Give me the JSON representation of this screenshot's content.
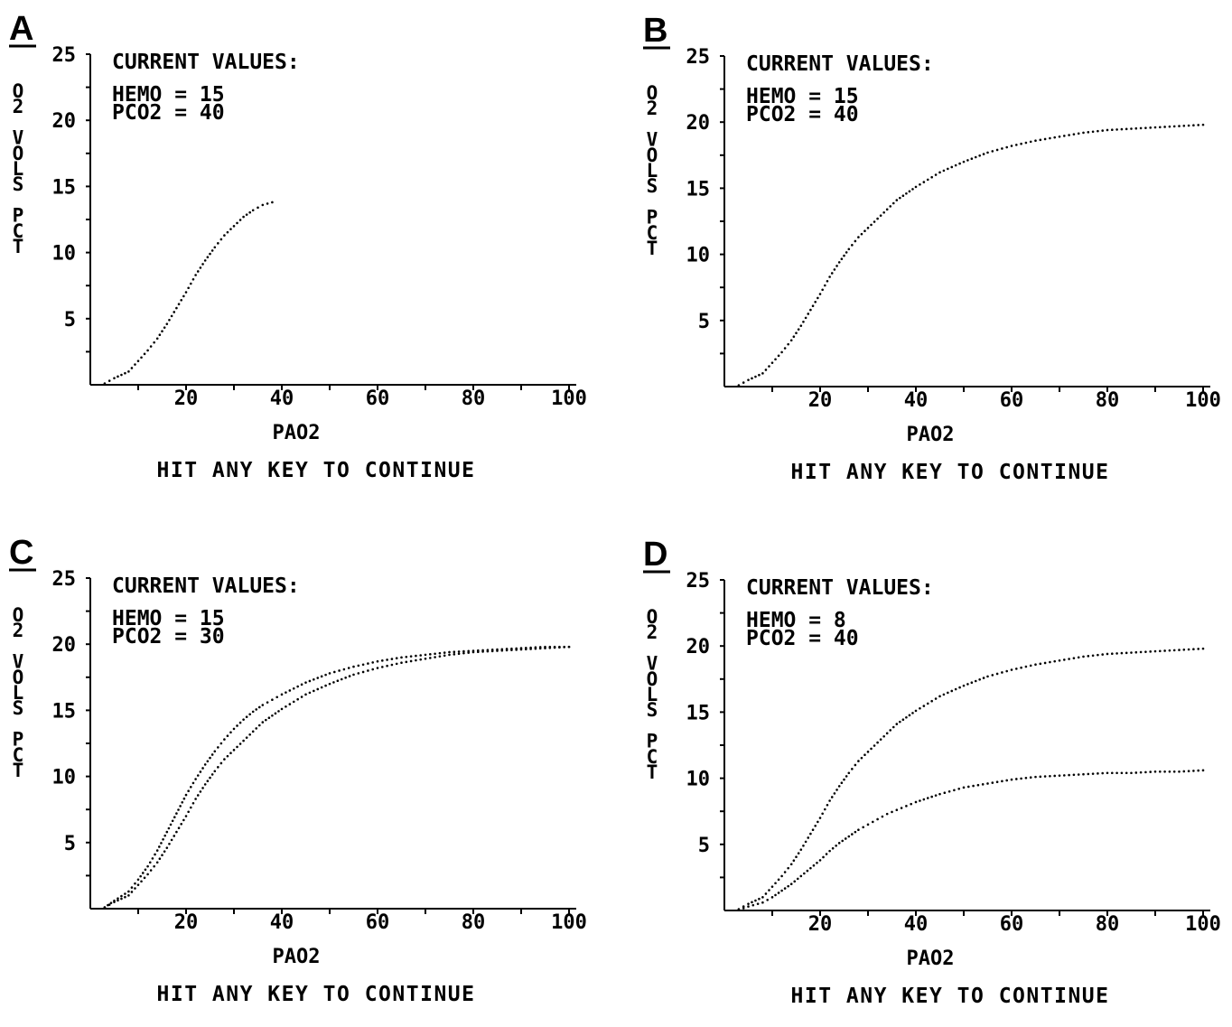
{
  "panels": [
    {
      "letter": "A",
      "heading": "CURRENT VALUES:",
      "hemo_text": "HEMO = 15",
      "pco2_text": "PCO2 = 40",
      "prompt": "HIT ANY KEY TO CONTINUE",
      "chart_data": {
        "type": "scatter",
        "xlabel": "PAO2",
        "ylabel": "O2 VOLS PCT",
        "x_ticks": [
          "20",
          "40",
          "60",
          "80",
          "100"
        ],
        "y_ticks": [
          "5",
          "10",
          "15",
          "20",
          "25"
        ],
        "xlim": [
          0,
          100
        ],
        "ylim": [
          0,
          25
        ],
        "series": [
          {
            "x": [
              3,
              5,
              8,
              10,
              12,
              14,
              16,
              18,
              20,
              22,
              24,
              26,
              28,
              30,
              32,
              34,
              36,
              38
            ],
            "y": [
              0.1,
              0.5,
              1.0,
              1.8,
              2.6,
              3.5,
              4.6,
              5.8,
              7.0,
              8.3,
              9.4,
              10.4,
              11.3,
              12.0,
              12.7,
              13.2,
              13.6,
              13.8
            ]
          }
        ]
      }
    },
    {
      "letter": "B",
      "heading": "CURRENT VALUES:",
      "hemo_text": "HEMO = 15",
      "pco2_text": "PCO2 = 40",
      "prompt": "HIT ANY KEY TO CONTINUE",
      "chart_data": {
        "type": "scatter",
        "xlabel": "PAO2",
        "ylabel": "O2 VOLS PCT",
        "x_ticks": [
          "20",
          "40",
          "60",
          "80",
          "100"
        ],
        "y_ticks": [
          "5",
          "10",
          "15",
          "20",
          "25"
        ],
        "xlim": [
          0,
          100
        ],
        "ylim": [
          0,
          25
        ],
        "series": [
          {
            "x": [
              3,
              5,
              8,
              10,
              12,
              14,
              16,
              18,
              20,
              22,
              24,
              26,
              28,
              30,
              32,
              34,
              36,
              38,
              40,
              45,
              50,
              55,
              60,
              65,
              70,
              75,
              80,
              85,
              90,
              95,
              100
            ],
            "y": [
              0.1,
              0.5,
              1.0,
              1.8,
              2.6,
              3.5,
              4.6,
              5.8,
              7.0,
              8.3,
              9.4,
              10.4,
              11.3,
              12.0,
              12.7,
              13.4,
              14.1,
              14.6,
              15.1,
              16.2,
              17.0,
              17.7,
              18.2,
              18.6,
              18.9,
              19.2,
              19.4,
              19.5,
              19.6,
              19.7,
              19.8
            ]
          }
        ]
      }
    },
    {
      "letter": "C",
      "heading": "CURRENT VALUES:",
      "hemo_text": "HEMO = 15",
      "pco2_text": "PCO2 = 30",
      "prompt": "HIT ANY KEY TO CONTINUE",
      "chart_data": {
        "type": "scatter",
        "xlabel": "PAO2",
        "ylabel": "O2 VOLS PCT",
        "x_ticks": [
          "20",
          "40",
          "60",
          "80",
          "100"
        ],
        "y_ticks": [
          "5",
          "10",
          "15",
          "20",
          "25"
        ],
        "xlim": [
          0,
          100
        ],
        "ylim": [
          0,
          25
        ],
        "series": [
          {
            "x": [
              3,
              5,
              8,
              10,
              12,
              14,
              16,
              18,
              20,
              22,
              24,
              26,
              28,
              30,
              32,
              34,
              36,
              38,
              40,
              45,
              50,
              55,
              60,
              65,
              70,
              75,
              80,
              85,
              90,
              95,
              100
            ],
            "y": [
              0.1,
              0.6,
              1.3,
              2.2,
              3.2,
              4.4,
              5.8,
              7.2,
              8.6,
              9.8,
              10.9,
              11.9,
              12.8,
              13.6,
              14.3,
              14.9,
              15.4,
              15.8,
              16.2,
              17.1,
              17.8,
              18.3,
              18.7,
              19.0,
              19.2,
              19.4,
              19.5,
              19.6,
              19.7,
              19.8,
              19.8
            ]
          },
          {
            "x": [
              3,
              5,
              8,
              10,
              12,
              14,
              16,
              18,
              20,
              22,
              24,
              26,
              28,
              30,
              32,
              34,
              36,
              38,
              40,
              45,
              50,
              55,
              60,
              65,
              70,
              75,
              80,
              85,
              90,
              95,
              100
            ],
            "y": [
              0.1,
              0.5,
              1.0,
              1.8,
              2.6,
              3.5,
              4.6,
              5.8,
              7.0,
              8.3,
              9.4,
              10.4,
              11.3,
              12.0,
              12.7,
              13.4,
              14.1,
              14.6,
              15.1,
              16.2,
              17.0,
              17.7,
              18.2,
              18.6,
              18.9,
              19.2,
              19.4,
              19.5,
              19.6,
              19.7,
              19.8
            ]
          }
        ]
      }
    },
    {
      "letter": "D",
      "heading": "CURRENT VALUES:",
      "hemo_text": "HEMO = 8",
      "pco2_text": "PCO2 = 40",
      "prompt": "HIT ANY KEY TO CONTINUE",
      "chart_data": {
        "type": "scatter",
        "xlabel": "PAO2",
        "ylabel": "O2 VOLS PCT",
        "x_ticks": [
          "20",
          "40",
          "60",
          "80",
          "100"
        ],
        "y_ticks": [
          "5",
          "10",
          "15",
          "20",
          "25"
        ],
        "xlim": [
          0,
          100
        ],
        "ylim": [
          0,
          25
        ],
        "series": [
          {
            "x": [
              3,
              5,
              8,
              10,
              12,
              14,
              16,
              18,
              20,
              22,
              24,
              26,
              28,
              30,
              32,
              34,
              36,
              38,
              40,
              45,
              50,
              55,
              60,
              65,
              70,
              75,
              80,
              85,
              90,
              95,
              100
            ],
            "y": [
              0.1,
              0.5,
              1.0,
              1.8,
              2.6,
              3.5,
              4.6,
              5.8,
              7.0,
              8.3,
              9.4,
              10.4,
              11.3,
              12.0,
              12.7,
              13.4,
              14.1,
              14.6,
              15.1,
              16.2,
              17.0,
              17.7,
              18.2,
              18.6,
              18.9,
              19.2,
              19.4,
              19.5,
              19.6,
              19.7,
              19.8
            ]
          },
          {
            "x": [
              3,
              5,
              8,
              10,
              12,
              14,
              16,
              18,
              20,
              22,
              24,
              26,
              28,
              30,
              32,
              34,
              36,
              38,
              40,
              45,
              50,
              55,
              60,
              65,
              70,
              75,
              80,
              85,
              90,
              95,
              100
            ],
            "y": [
              0.05,
              0.3,
              0.6,
              1.0,
              1.5,
              2.0,
              2.6,
              3.2,
              3.8,
              4.5,
              5.1,
              5.6,
              6.1,
              6.5,
              6.9,
              7.3,
              7.6,
              7.9,
              8.2,
              8.8,
              9.3,
              9.6,
              9.9,
              10.1,
              10.2,
              10.3,
              10.4,
              10.4,
              10.5,
              10.5,
              10.6
            ]
          }
        ]
      }
    }
  ]
}
